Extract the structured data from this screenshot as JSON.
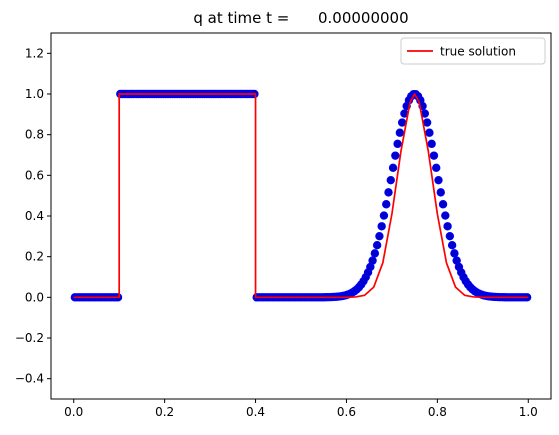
{
  "chart_data": {
    "type": "line",
    "title": "q at time t =      0.00000000",
    "xlabel": "",
    "ylabel": "",
    "xlim": [
      -0.05,
      1.05
    ],
    "ylim": [
      -0.5,
      1.3
    ],
    "xticks": [
      0.0,
      0.2,
      0.4,
      0.6,
      0.8,
      1.0
    ],
    "xtick_labels": [
      "0.0",
      "0.2",
      "0.4",
      "0.6",
      "0.8",
      "1.0"
    ],
    "yticks": [
      -0.4,
      -0.2,
      0.0,
      0.2,
      0.4,
      0.6,
      0.8,
      1.0,
      1.2
    ],
    "ytick_labels": [
      "−0.4",
      "−0.2",
      "0.0",
      "0.2",
      "0.4",
      "0.6",
      "0.8",
      "1.0",
      "1.2"
    ],
    "grid": false,
    "legend": {
      "position": "top-right",
      "entries": [
        "true solution"
      ]
    },
    "series": [
      {
        "name": "true solution",
        "kind": "line",
        "color": "#ff0000",
        "x": [
          0.0,
          0.1,
          0.1,
          0.4,
          0.4,
          0.6,
          0.62,
          0.64,
          0.66,
          0.68,
          0.7,
          0.72,
          0.74,
          0.75,
          0.76,
          0.78,
          0.8,
          0.82,
          0.84,
          0.86,
          0.88,
          0.9,
          1.0
        ],
        "y": [
          0.0,
          0.0,
          1.0,
          1.0,
          0.0,
          0.0,
          0.002,
          0.01,
          0.05,
          0.17,
          0.41,
          0.72,
          0.96,
          1.0,
          0.96,
          0.72,
          0.41,
          0.17,
          0.05,
          0.01,
          0.002,
          0.0,
          0.0
        ]
      },
      {
        "kind": "scatter",
        "color": "#0000cd",
        "edge_color": "#0000ff",
        "x_start": 0.0025,
        "x_step": 0.005,
        "count": 200,
        "profile": {
          "square_range": [
            0.1,
            0.4
          ],
          "square_value": 1.0,
          "gaussian_center": 0.75,
          "gaussian_coeff": 200
        }
      }
    ]
  }
}
